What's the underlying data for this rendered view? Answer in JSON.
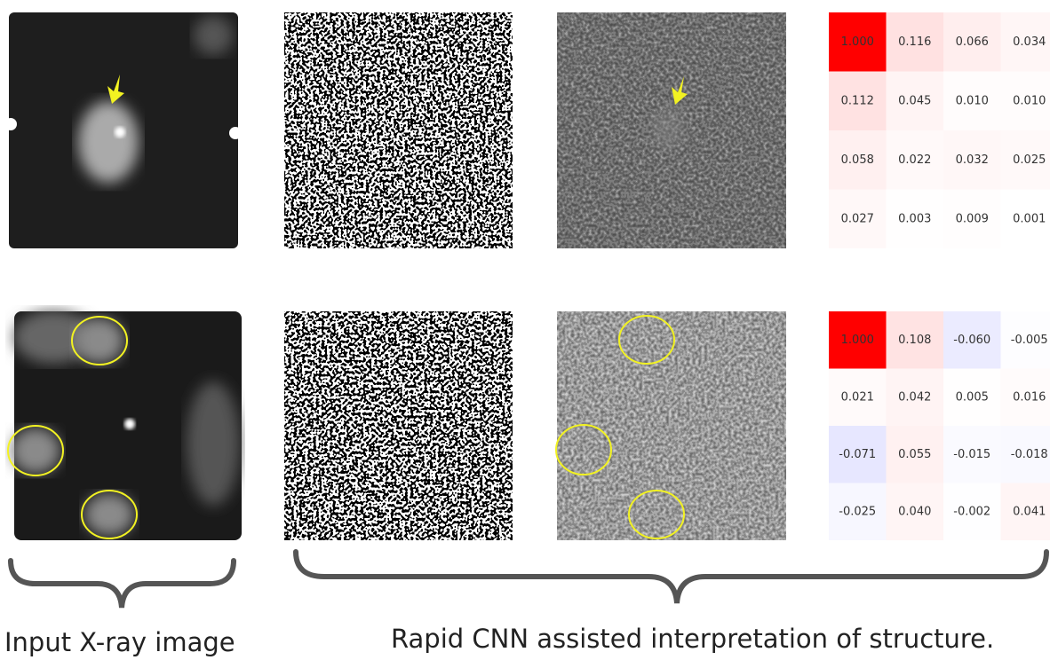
{
  "matrices": [
    {
      "rows": [
        [
          "1.000",
          "0.116",
          "0.066",
          "0.034"
        ],
        [
          "0.112",
          "0.045",
          "0.010",
          "0.010"
        ],
        [
          "0.058",
          "0.022",
          "0.032",
          "0.025"
        ],
        [
          "0.027",
          "0.003",
          "0.009",
          "0.001"
        ]
      ]
    },
    {
      "rows": [
        [
          "1.000",
          "0.108",
          "-0.060",
          "-0.005"
        ],
        [
          "0.021",
          "0.042",
          "0.005",
          "0.016"
        ],
        [
          "-0.071",
          "0.055",
          "-0.015",
          "-0.018"
        ],
        [
          "-0.025",
          "0.040",
          "-0.002",
          "0.041"
        ]
      ]
    }
  ],
  "captions": {
    "left": "Input X-ray image",
    "right": "Rapid CNN assisted interpretation of structure."
  }
}
